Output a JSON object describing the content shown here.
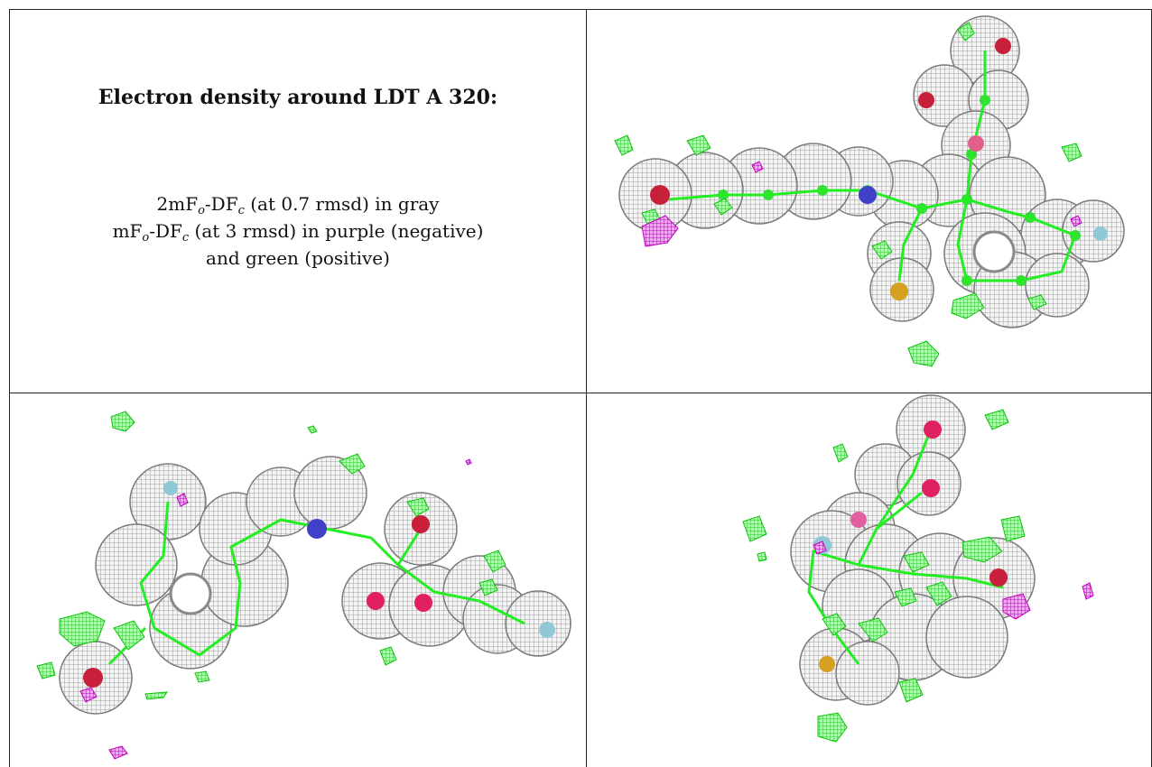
{
  "caption": {
    "title": "Electron density around LDT A 320:",
    "line1_prefix": "2mF",
    "line1_sub1": "o",
    "line1_mid": "-DF",
    "line1_sub2": "c",
    "line1_suffix": " (at 0.7 rmsd) in gray",
    "line2_prefix": "mF",
    "line2_sub1": "o",
    "line2_mid": "-DF",
    "line2_sub2": "c",
    "line2_suffix": " (at 3 rmsd) in purple (negative)",
    "line3": "and green (positive)"
  },
  "colors": {
    "density_gray": "#8a8a8a",
    "positive_green": "#22ee22",
    "negative_purple": "#d61ad6",
    "atom_oxygen": "#c8203a",
    "atom_nitrogen": "#4040c8",
    "atom_sulfur": "#d4a020",
    "atom_fluorine": "#90c8d8"
  },
  "panels": [
    {
      "view": "top-right"
    },
    {
      "view": "bottom-left"
    },
    {
      "view": "bottom-right"
    }
  ]
}
